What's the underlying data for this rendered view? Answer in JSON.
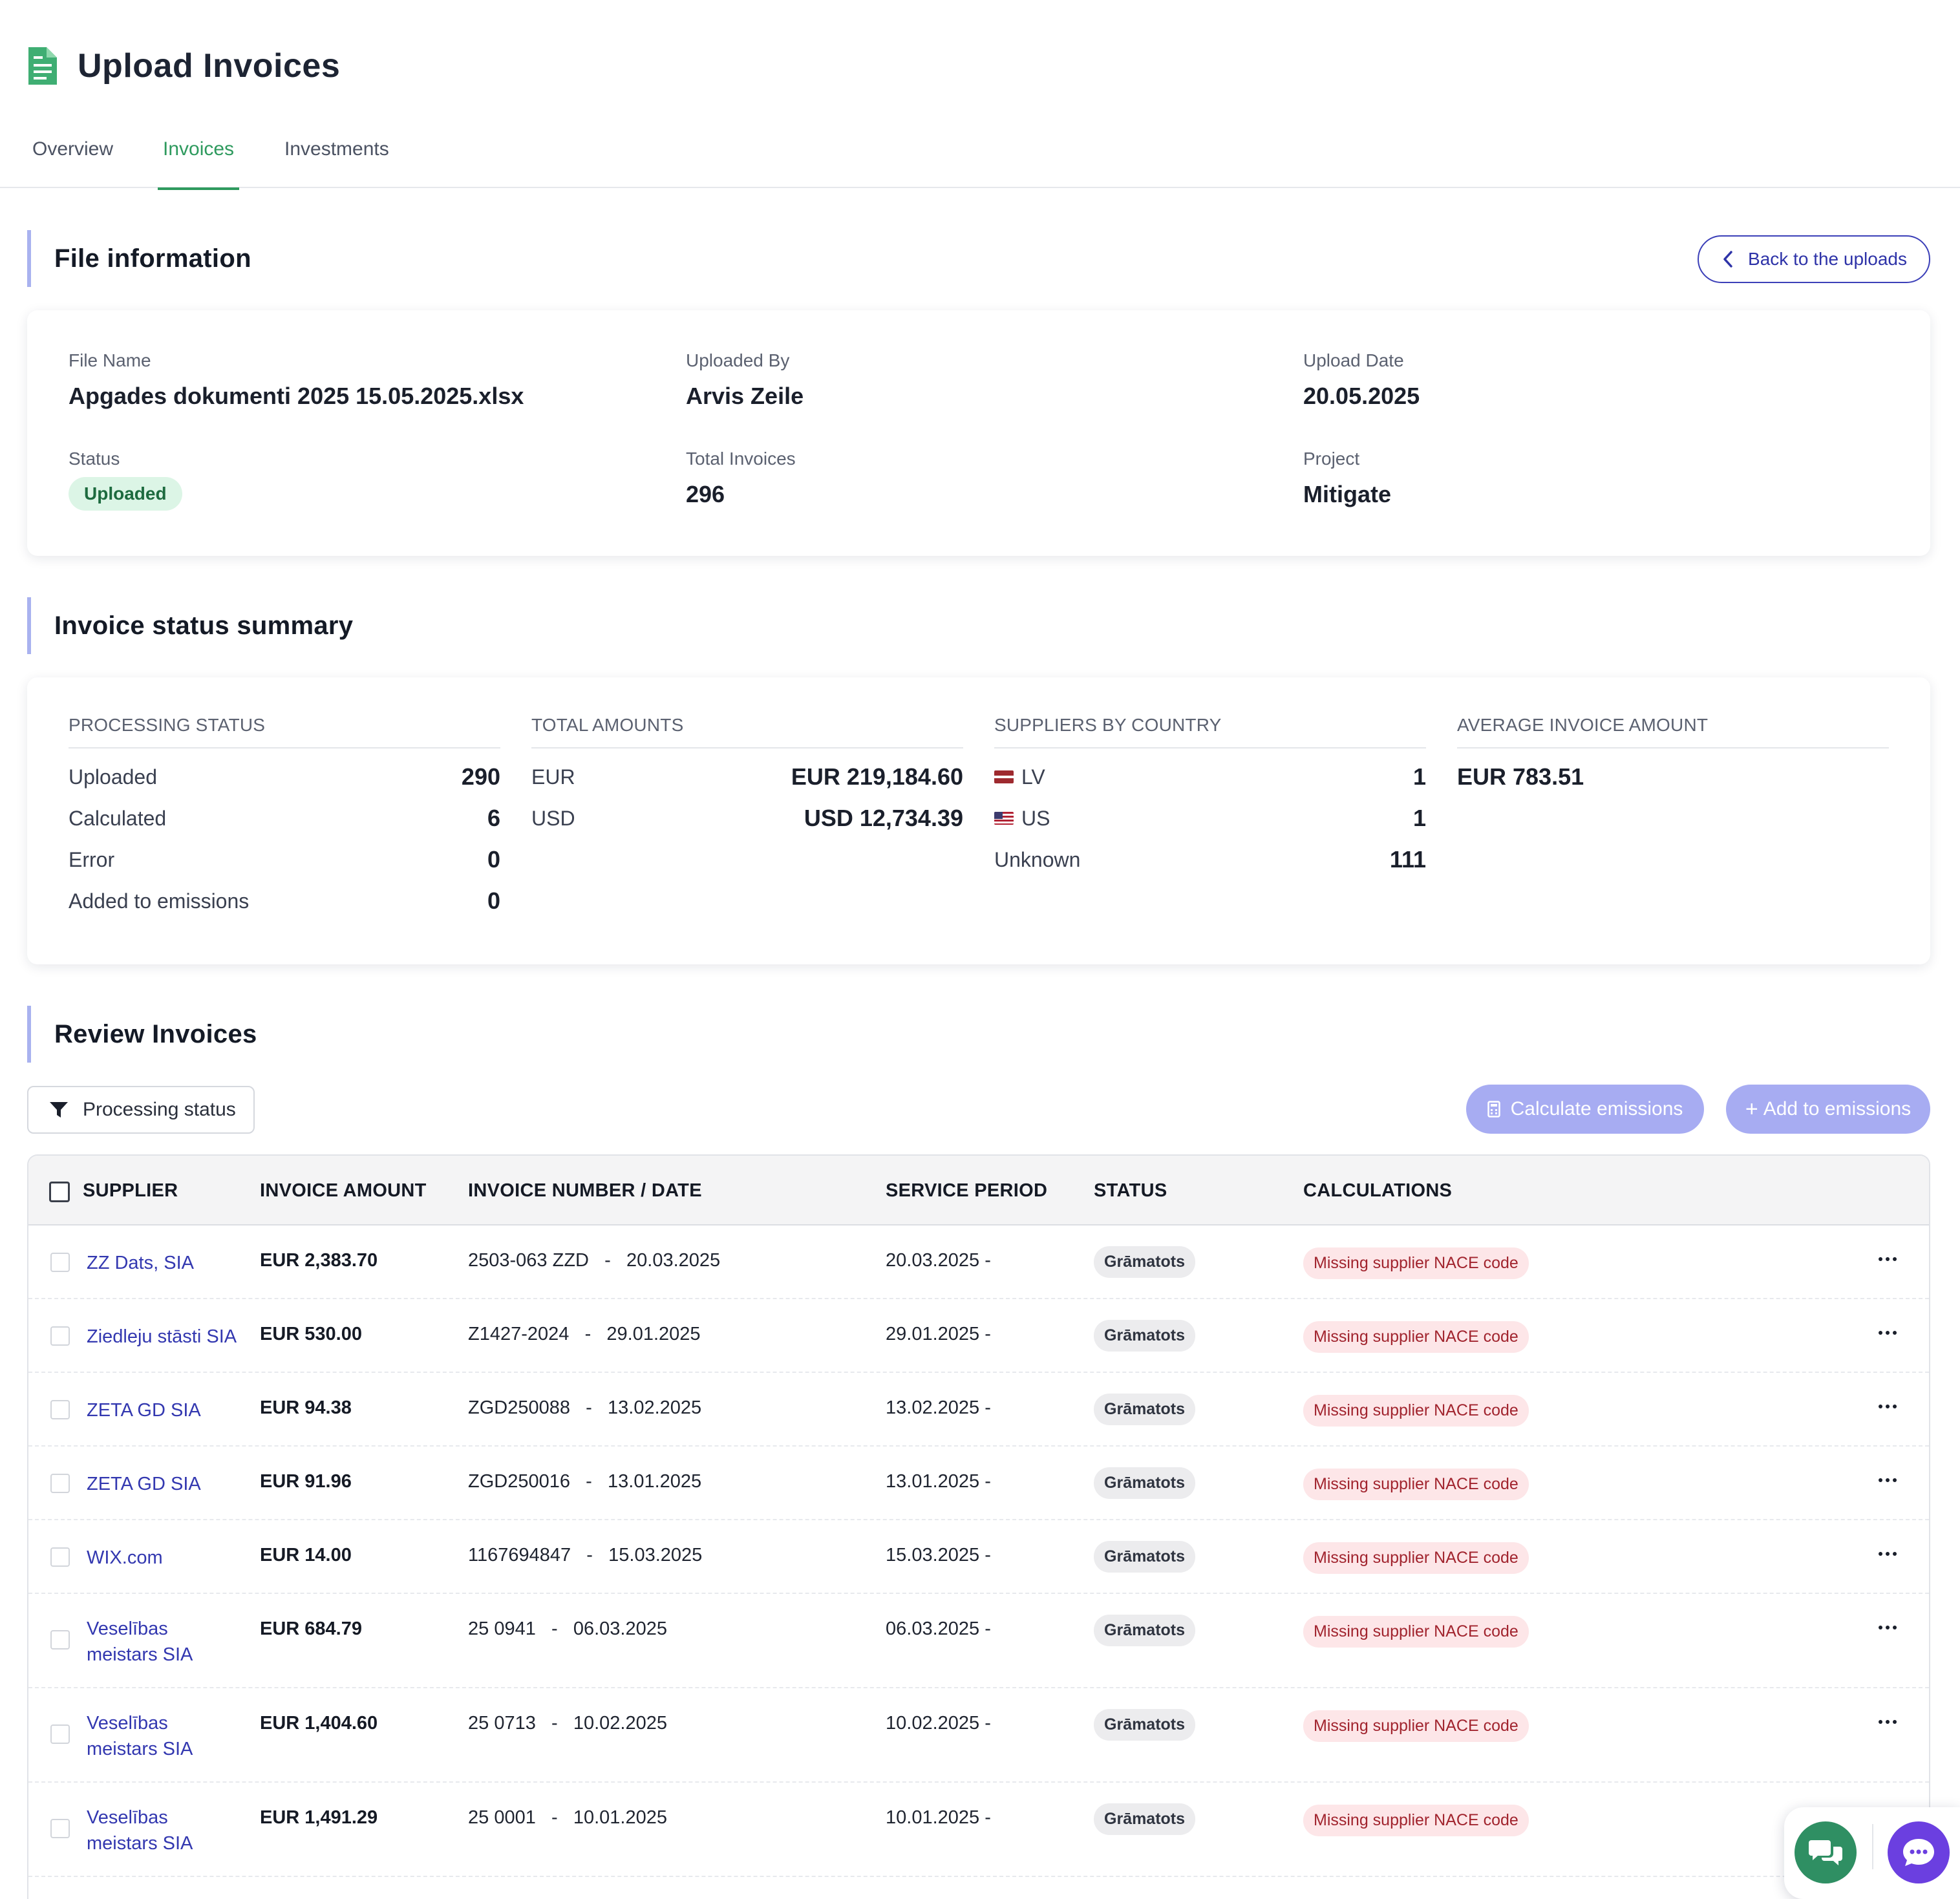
{
  "page": {
    "title": "Upload Invoices",
    "icon": "document-icon"
  },
  "tabs": [
    {
      "label": "Overview",
      "active": false
    },
    {
      "label": "Invoices",
      "active": true
    },
    {
      "label": "Investments",
      "active": false
    }
  ],
  "file_info": {
    "section_title": "File information",
    "back_button": "Back to the uploads",
    "file_name_label": "File Name",
    "file_name": "Apgades dokumenti 2025 15.05.2025.xlsx",
    "uploaded_by_label": "Uploaded By",
    "uploaded_by": "Arvis Zeile",
    "upload_date_label": "Upload Date",
    "upload_date": "20.05.2025",
    "status_label": "Status",
    "status": "Uploaded",
    "total_invoices_label": "Total Invoices",
    "total_invoices": "296",
    "project_label": "Project",
    "project": "Mitigate"
  },
  "summary": {
    "section_title": "Invoice status summary",
    "processing": {
      "heading": "PROCESSING STATUS",
      "rows": [
        {
          "label": "Uploaded",
          "value": "290"
        },
        {
          "label": "Calculated",
          "value": "6"
        },
        {
          "label": "Error",
          "value": "0"
        },
        {
          "label": "Added to emissions",
          "value": "0"
        }
      ]
    },
    "totals": {
      "heading": "TOTAL AMOUNTS",
      "rows": [
        {
          "label": "EUR",
          "value": "EUR 219,184.60"
        },
        {
          "label": "USD",
          "value": "USD 12,734.39"
        }
      ]
    },
    "countries": {
      "heading": "SUPPLIERS BY COUNTRY",
      "rows": [
        {
          "label": "LV",
          "flag": "latvia-flag",
          "value": "1"
        },
        {
          "label": "US",
          "flag": "us-flag",
          "value": "1"
        },
        {
          "label": "Unknown",
          "value": "111"
        }
      ]
    },
    "average": {
      "heading": "AVERAGE INVOICE AMOUNT",
      "value": "EUR 783.51"
    }
  },
  "review": {
    "section_title": "Review Invoices",
    "filter_label": "Processing status",
    "calculate_label": "Calculate emissions",
    "add_label": "Add to emissions",
    "columns": [
      "SUPPLIER",
      "INVOICE AMOUNT",
      "INVOICE NUMBER / DATE",
      "SERVICE PERIOD",
      "STATUS",
      "CALCULATIONS"
    ],
    "rows": [
      {
        "supplier": "ZZ Dats, SIA",
        "amount": "EUR 2,383.70",
        "number": "2503-063 ZZD",
        "date": "20.03.2025",
        "period": "20.03.2025 -",
        "status": "Grāmatots",
        "calc": "Missing supplier NACE code"
      },
      {
        "supplier": "Ziedleju stāsti SIA",
        "amount": "EUR 530.00",
        "number": "Z1427-2024",
        "date": "29.01.2025",
        "period": "29.01.2025 -",
        "status": "Grāmatots",
        "calc": "Missing supplier NACE code"
      },
      {
        "supplier": "ZETA GD SIA",
        "amount": "EUR 94.38",
        "number": "ZGD250088",
        "date": "13.02.2025",
        "period": "13.02.2025 -",
        "status": "Grāmatots",
        "calc": "Missing supplier NACE code"
      },
      {
        "supplier": "ZETA GD SIA",
        "amount": "EUR 91.96",
        "number": "ZGD250016",
        "date": "13.01.2025",
        "period": "13.01.2025 -",
        "status": "Grāmatots",
        "calc": "Missing supplier NACE code"
      },
      {
        "supplier": "WIX.com",
        "amount": "EUR 14.00",
        "number": "1167694847",
        "date": "15.03.2025",
        "period": "15.03.2025 -",
        "status": "Grāmatots",
        "calc": "Missing supplier NACE code"
      },
      {
        "supplier": "Veselības meistars SIA",
        "amount": "EUR 684.79",
        "number": "25 0941",
        "date": "06.03.2025",
        "period": "06.03.2025 -",
        "status": "Grāmatots",
        "calc": "Missing supplier NACE code"
      },
      {
        "supplier": "Veselības meistars SIA",
        "amount": "EUR 1,404.60",
        "number": "25 0713",
        "date": "10.02.2025",
        "period": "10.02.2025 -",
        "status": "Grāmatots",
        "calc": "Missing supplier NACE code"
      },
      {
        "supplier": "Veselības meistars SIA",
        "amount": "EUR 1,491.29",
        "number": "25 0001",
        "date": "10.01.2025",
        "period": "10.01.2025 -",
        "status": "Grāmatots",
        "calc": "Missing supplier NACE code"
      }
    ]
  },
  "colors": {
    "accent_green": "#2e9a5e",
    "link_blue": "#3338b0",
    "button_purple": "#a7acf2",
    "section_bar": "#a9b2ef",
    "error_badge_bg": "#fde6e8",
    "success_badge_bg": "#dcf5e6"
  }
}
